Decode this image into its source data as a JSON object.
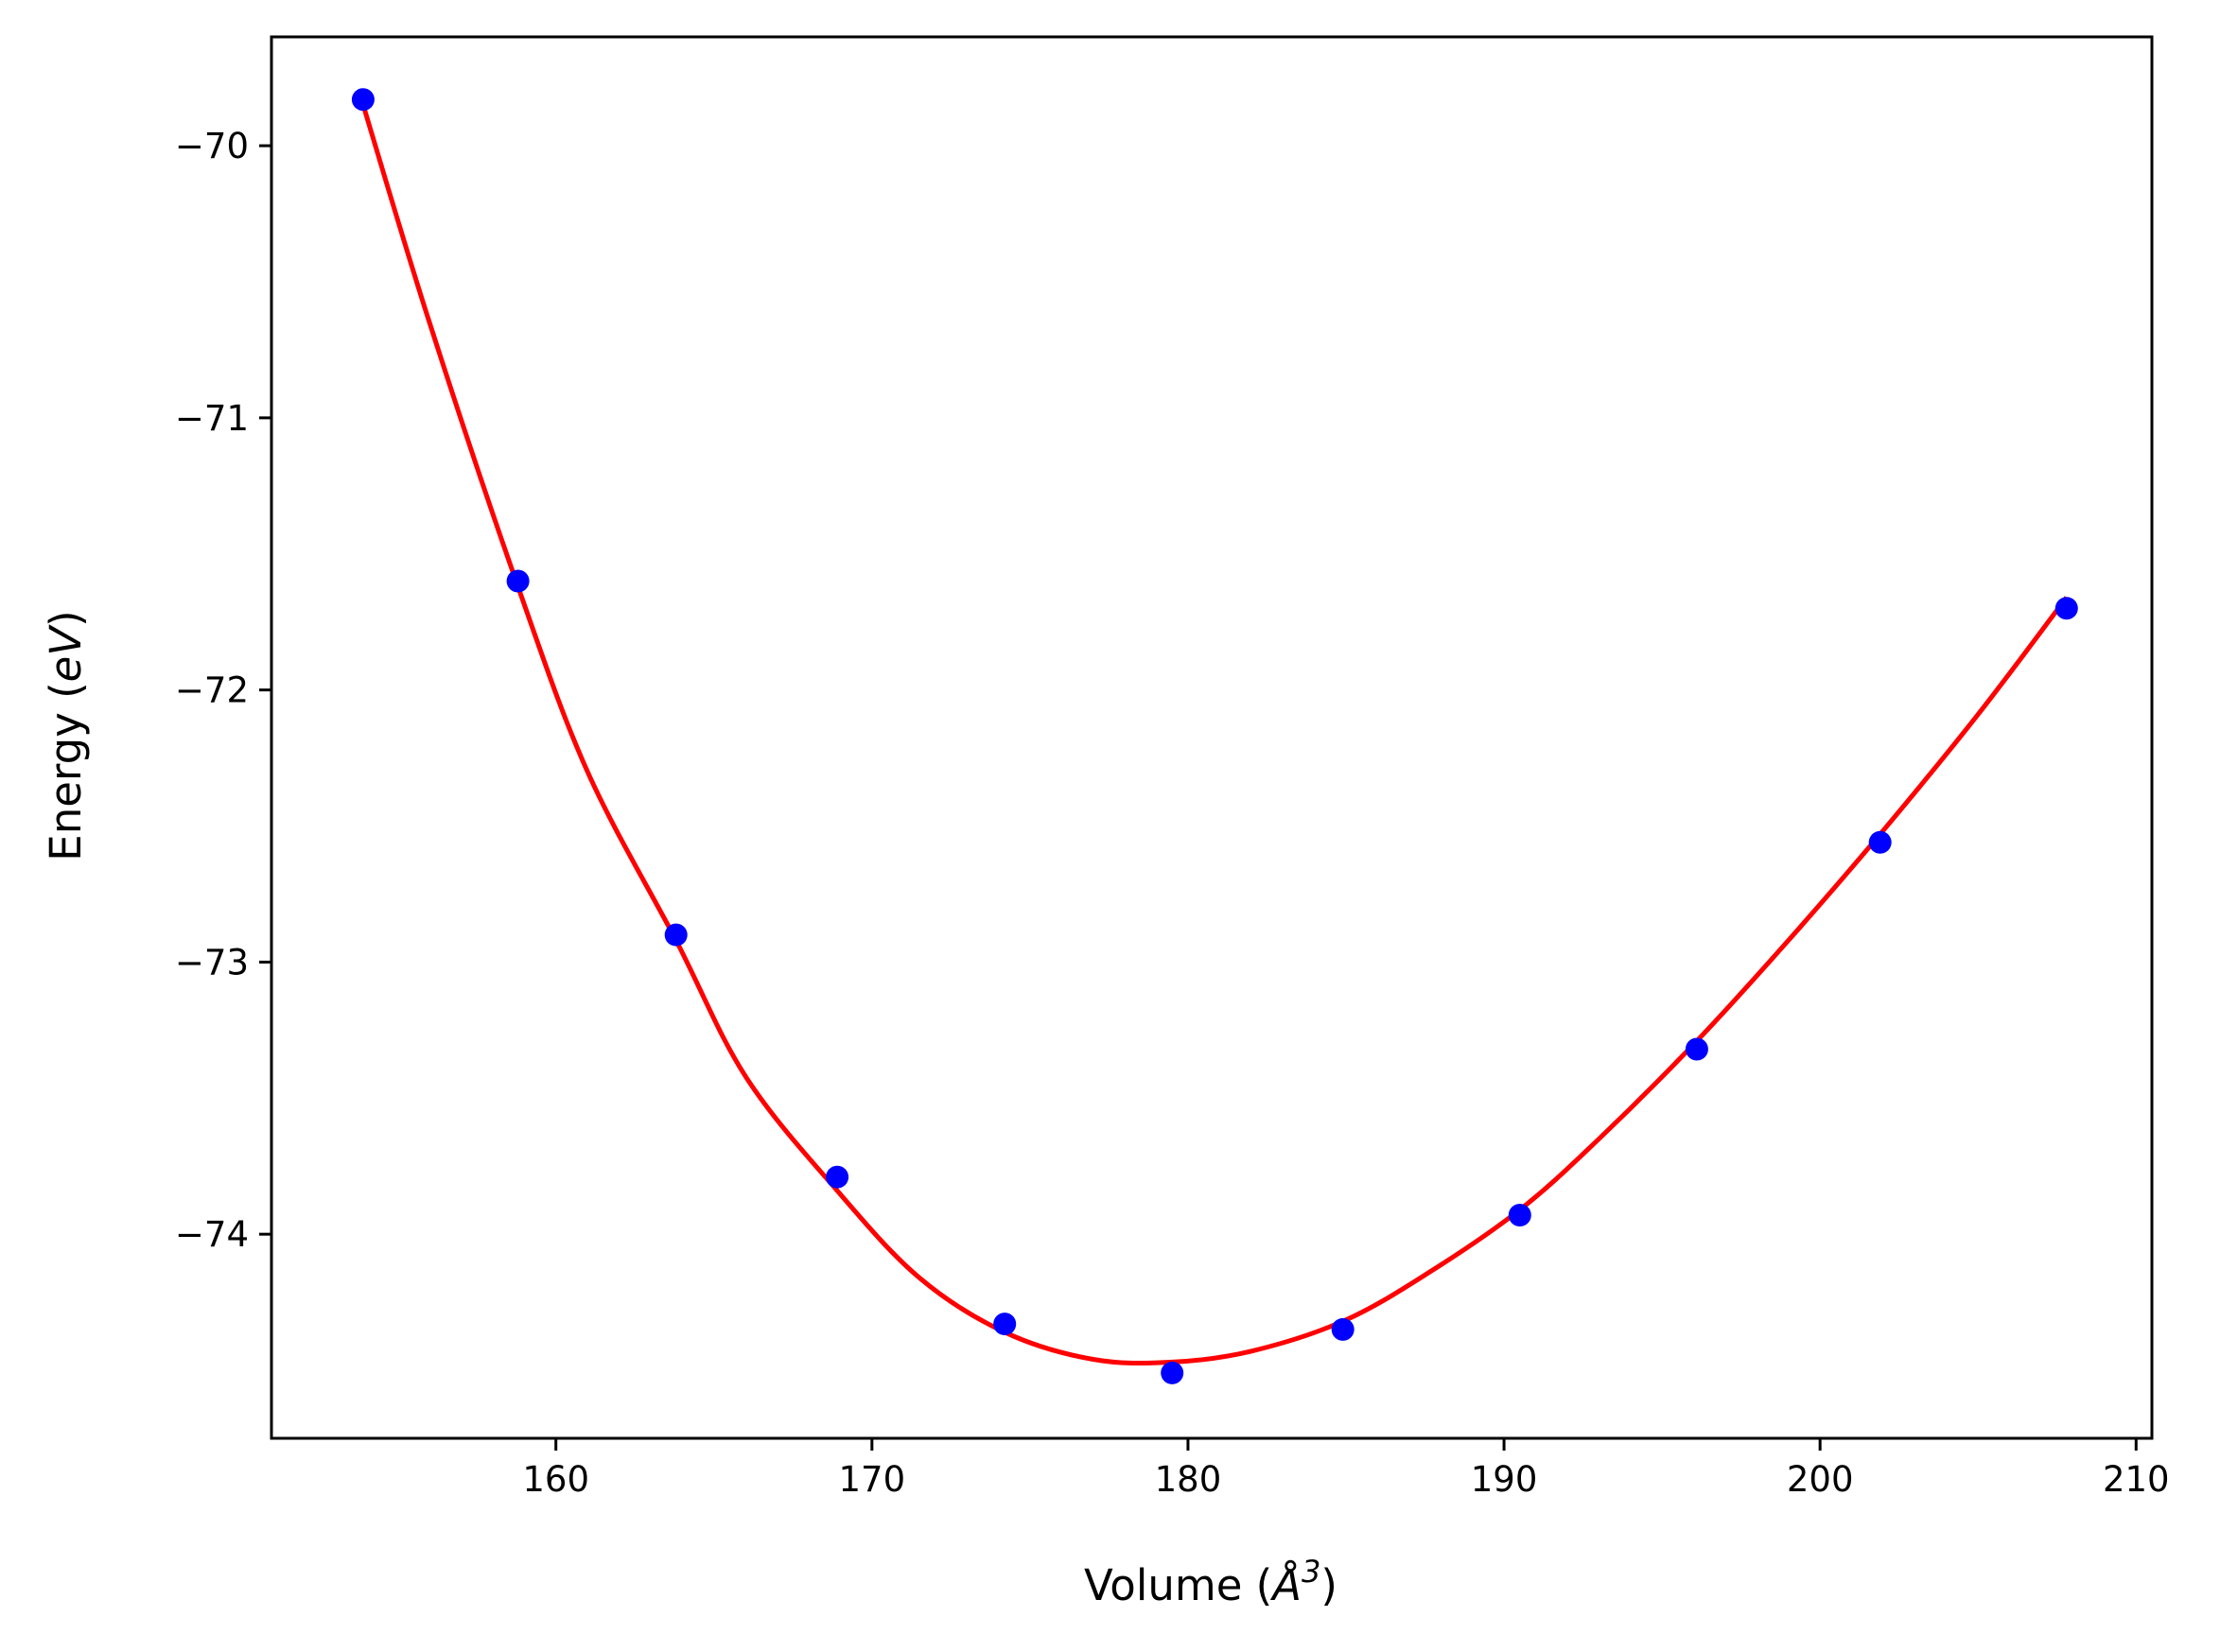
{
  "chart_data": {
    "type": "scatter",
    "xlabel": {
      "prefix": "Volume (",
      "symbol": "Å",
      "superscript": "3",
      "suffix": ")"
    },
    "ylabel": {
      "prefix": "Energy (",
      "symbol": "eV",
      "suffix": ")"
    },
    "xlim": [
      151,
      210.5
    ],
    "ylim": [
      -74.75,
      -69.6
    ],
    "xticks": [
      160,
      170,
      180,
      190,
      200,
      210
    ],
    "xtick_labels": [
      "160",
      "170",
      "180",
      "190",
      "200",
      "210"
    ],
    "yticks": [
      -70,
      -71,
      -72,
      -73,
      -74
    ],
    "ytick_labels": [
      "−70",
      "−71",
      "−72",
      "−73",
      "−74"
    ],
    "grid": false,
    "series": [
      {
        "kind": "points",
        "color": "#0000ff",
        "x": [
          153.9,
          158.8,
          163.8,
          168.9,
          174.2,
          179.5,
          184.9,
          190.5,
          196.1,
          201.9,
          207.8
        ],
        "y": [
          -69.83,
          -71.6,
          -72.9,
          -73.79,
          -74.33,
          -74.51,
          -74.35,
          -73.93,
          -73.32,
          -72.56,
          -71.7
        ]
      },
      {
        "kind": "fit-curve",
        "color": "#ff0000",
        "x": [
          153.9,
          156.0,
          158.8,
          161.0,
          163.8,
          166.0,
          168.9,
          171.5,
          174.2,
          177.0,
          179.5,
          182.0,
          184.9,
          187.5,
          190.5,
          193.0,
          196.1,
          199.0,
          201.9,
          205.0,
          207.8
        ],
        "y": [
          -69.85,
          -70.65,
          -71.62,
          -72.3,
          -72.92,
          -73.42,
          -73.84,
          -74.16,
          -74.36,
          -74.46,
          -74.47,
          -74.43,
          -74.32,
          -74.15,
          -73.91,
          -73.65,
          -73.29,
          -72.92,
          -72.53,
          -72.09,
          -71.66
        ]
      }
    ]
  }
}
